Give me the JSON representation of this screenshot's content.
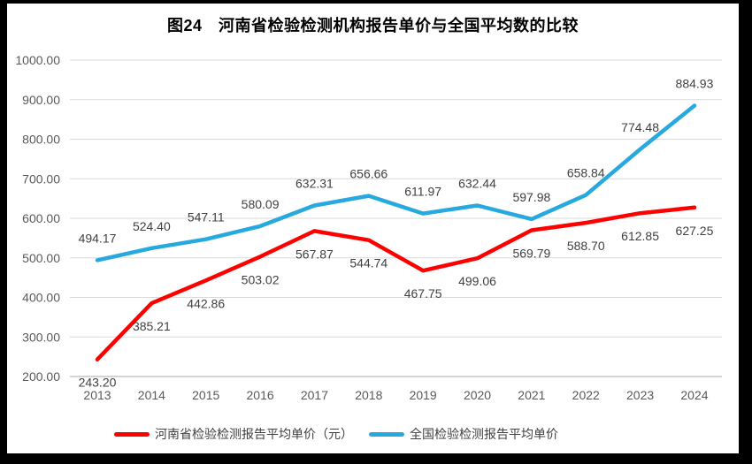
{
  "chart_data": {
    "type": "line",
    "title": "图24　河南省检验检测机构报告单价与全国平均数的比较",
    "categories": [
      "2013",
      "2014",
      "2015",
      "2016",
      "2017",
      "2018",
      "2019",
      "2020",
      "2021",
      "2022",
      "2023",
      "2024"
    ],
    "series": [
      {
        "name": "河南省检验检测报告平均单价（元）",
        "color": "#FE0000",
        "label_position": "below",
        "values": [
          243.2,
          385.21,
          442.86,
          503.02,
          567.87,
          544.74,
          467.75,
          499.06,
          569.79,
          588.7,
          612.85,
          627.25
        ]
      },
      {
        "name": "全国检验检测报告平均单价",
        "color": "#27A9E0",
        "label_position": "above",
        "values": [
          494.17,
          524.4,
          547.11,
          580.09,
          632.31,
          656.66,
          611.97,
          632.44,
          597.98,
          658.84,
          774.48,
          884.93
        ]
      }
    ],
    "y_axis": {
      "min": 200,
      "max": 1000,
      "step": 100,
      "tick_labels": [
        "200.00",
        "300.00",
        "400.00",
        "500.00",
        "600.00",
        "700.00",
        "800.00",
        "900.00",
        "1000.00"
      ]
    },
    "grid": true,
    "legend_position": "bottom",
    "data_labels": true
  },
  "colors": {
    "grid": "#D9D9D9",
    "axis_line": "#C6C6C6",
    "tick_text": "#595959",
    "data_label_text": "#404040",
    "title_text": "#000000",
    "background": "#FFFFFF",
    "frame": "#000000"
  }
}
